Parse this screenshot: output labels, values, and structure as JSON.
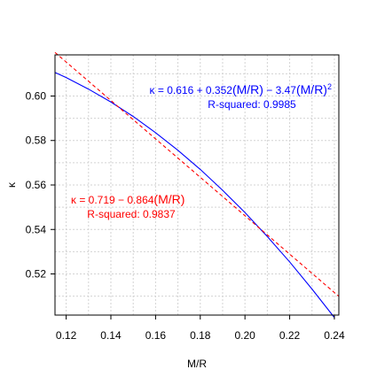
{
  "chart_data": {
    "type": "line",
    "title": "",
    "xlabel": "M/R",
    "ylabel": "κ",
    "xlim": [
      0.115,
      0.242
    ],
    "ylim": [
      0.5015,
      0.6185
    ],
    "x_ticks": [
      0.12,
      0.14,
      0.16,
      0.18,
      0.2,
      0.22,
      0.24
    ],
    "x_tick_labels": [
      "0.12",
      "0.14",
      "0.16",
      "0.18",
      "0.20",
      "0.22",
      "0.24"
    ],
    "y_ticks": [
      0.52,
      0.54,
      0.56,
      0.58,
      0.6
    ],
    "y_tick_labels": [
      "0.52",
      "0.54",
      "0.56",
      "0.58",
      "0.60"
    ],
    "grid": true,
    "series": [
      {
        "kind": "quadratic-fit",
        "color": "#0000ff",
        "style": "solid",
        "coefficients": [
          0.616,
          0.352,
          -3.47
        ],
        "x": [
          0.115,
          0.12,
          0.13,
          0.14,
          0.15,
          0.16,
          0.17,
          0.18,
          0.19,
          0.2,
          0.21,
          0.22,
          0.23,
          0.24
        ],
        "y": [
          0.6106,
          0.6083,
          0.6031,
          0.5973,
          0.5908,
          0.5835,
          0.5756,
          0.567,
          0.5576,
          0.5476,
          0.5368,
          0.5254,
          0.5132,
          0.5004
        ]
      },
      {
        "kind": "linear-fit",
        "color": "#ff0000",
        "style": "dashed",
        "coefficients": [
          0.719,
          -0.864
        ],
        "x": [
          0.115,
          0.242
        ],
        "y": [
          0.6196,
          0.5099
        ]
      }
    ],
    "annotations": [
      {
        "color": "#0000ff",
        "formula_prefix": "κ = 0.616 + 0.352",
        "formula_paren": "(M/R)",
        "formula_mid": " − 3.47",
        "formula_paren2": "(M/R)",
        "formula_sup": "2",
        "r_squared": "R-squared: 0.9985"
      },
      {
        "color": "#ff0000",
        "formula_prefix": "κ = 0.719 − 0.864",
        "formula_paren": "(M/R)",
        "r_squared": "R-squared: 0.9837"
      }
    ]
  }
}
